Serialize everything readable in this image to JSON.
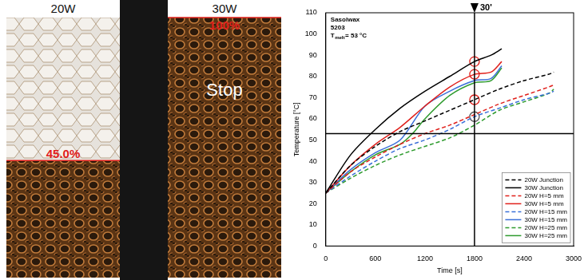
{
  "photos": [
    {
      "title": "20W",
      "fraction": 45.0,
      "fraction_label": "45.0%"
    },
    {
      "title": "30W",
      "fraction": 100,
      "fraction_label": "100%",
      "note": "Stop"
    }
  ],
  "chart_data": {
    "type": "line",
    "x_label": "Time [s]",
    "y_label": "Temperature [°C]",
    "annotation": [
      [
        {
          "text": "Sasolwax"
        }
      ],
      [
        {
          "text": "5203"
        }
      ],
      [
        {
          "text": "T"
        },
        {
          "text": "melt",
          "sub": true
        },
        {
          "text": "= 53 °C"
        }
      ]
    ],
    "xlim": [
      0,
      3000
    ],
    "xticks": [
      0,
      600,
      1200,
      1800,
      2400,
      3000
    ],
    "ylim": [
      0,
      110
    ],
    "yticks": [
      0,
      10,
      20,
      30,
      40,
      50,
      60,
      70,
      80,
      90,
      100,
      110
    ],
    "grid": false,
    "legend": "lower right",
    "vline": {
      "x": 1800,
      "label": "30'"
    },
    "hline": {
      "y": 53
    },
    "circled_points": {
      "x": [
        1800,
        1800,
        1800,
        1800
      ],
      "y": [
        87,
        81,
        69,
        61
      ],
      "colors": [
        "#e0201b",
        "#e0201b",
        "#e0201b",
        "#555555"
      ]
    },
    "series": [
      {
        "name": "20W Junction",
        "color": "#000000",
        "line_style": "dashed",
        "x": [
          0,
          300,
          600,
          900,
          1200,
          1500,
          1800,
          2100,
          2400,
          2700,
          2760
        ],
        "values": [
          25,
          38,
          47,
          54,
          59,
          64,
          69,
          74,
          78,
          81,
          82
        ]
      },
      {
        "name": "30W Junction",
        "color": "#000000",
        "line_style": "solid",
        "x": [
          0,
          300,
          600,
          900,
          1200,
          1500,
          1800,
          2000,
          2130
        ],
        "values": [
          25,
          43,
          55,
          65,
          73,
          80,
          87,
          90,
          93
        ]
      },
      {
        "name": "20W H=5 mm",
        "color": "#e0201b",
        "line_style": "dashed",
        "x": [
          0,
          300,
          600,
          900,
          1200,
          1500,
          1800,
          2100,
          2400,
          2700,
          2760
        ],
        "values": [
          25,
          35,
          42,
          48,
          53,
          57,
          62,
          67,
          71,
          75,
          76
        ]
      },
      {
        "name": "30W H=5 mm",
        "color": "#e0201b",
        "line_style": "solid",
        "x": [
          0,
          300,
          600,
          900,
          1200,
          1500,
          1800,
          2000,
          2130
        ],
        "values": [
          25,
          38,
          48,
          56,
          66,
          75,
          81,
          82,
          87
        ]
      },
      {
        "name": "20W H=15 mm",
        "color": "#3a6fd8",
        "line_style": "dashed",
        "x": [
          0,
          300,
          600,
          900,
          1200,
          1500,
          1800,
          2100,
          2400,
          2700,
          2760
        ],
        "values": [
          25,
          33,
          40,
          46,
          50,
          55,
          61,
          65,
          69,
          72,
          73
        ]
      },
      {
        "name": "30W H=15 mm",
        "color": "#3a6fd8",
        "line_style": "solid",
        "x": [
          0,
          300,
          600,
          900,
          1200,
          1500,
          1800,
          2000,
          2130
        ],
        "values": [
          25,
          36,
          44,
          50,
          66,
          73,
          78,
          79,
          85
        ]
      },
      {
        "name": "20W H=25 mm",
        "color": "#2e9b2e",
        "line_style": "dashed",
        "x": [
          0,
          300,
          600,
          900,
          1200,
          1500,
          1800,
          2100,
          2400,
          2700,
          2760
        ],
        "values": [
          25,
          32,
          38,
          43,
          47,
          51,
          57,
          64,
          68,
          72,
          74
        ]
      },
      {
        "name": "30W H=25 mm",
        "color": "#2e9b2e",
        "line_style": "solid",
        "x": [
          0,
          300,
          600,
          900,
          1050,
          1200,
          1500,
          1800,
          2000,
          2130
        ],
        "values": [
          25,
          35,
          43,
          48,
          53,
          60,
          71,
          77,
          78,
          84
        ]
      }
    ]
  }
}
